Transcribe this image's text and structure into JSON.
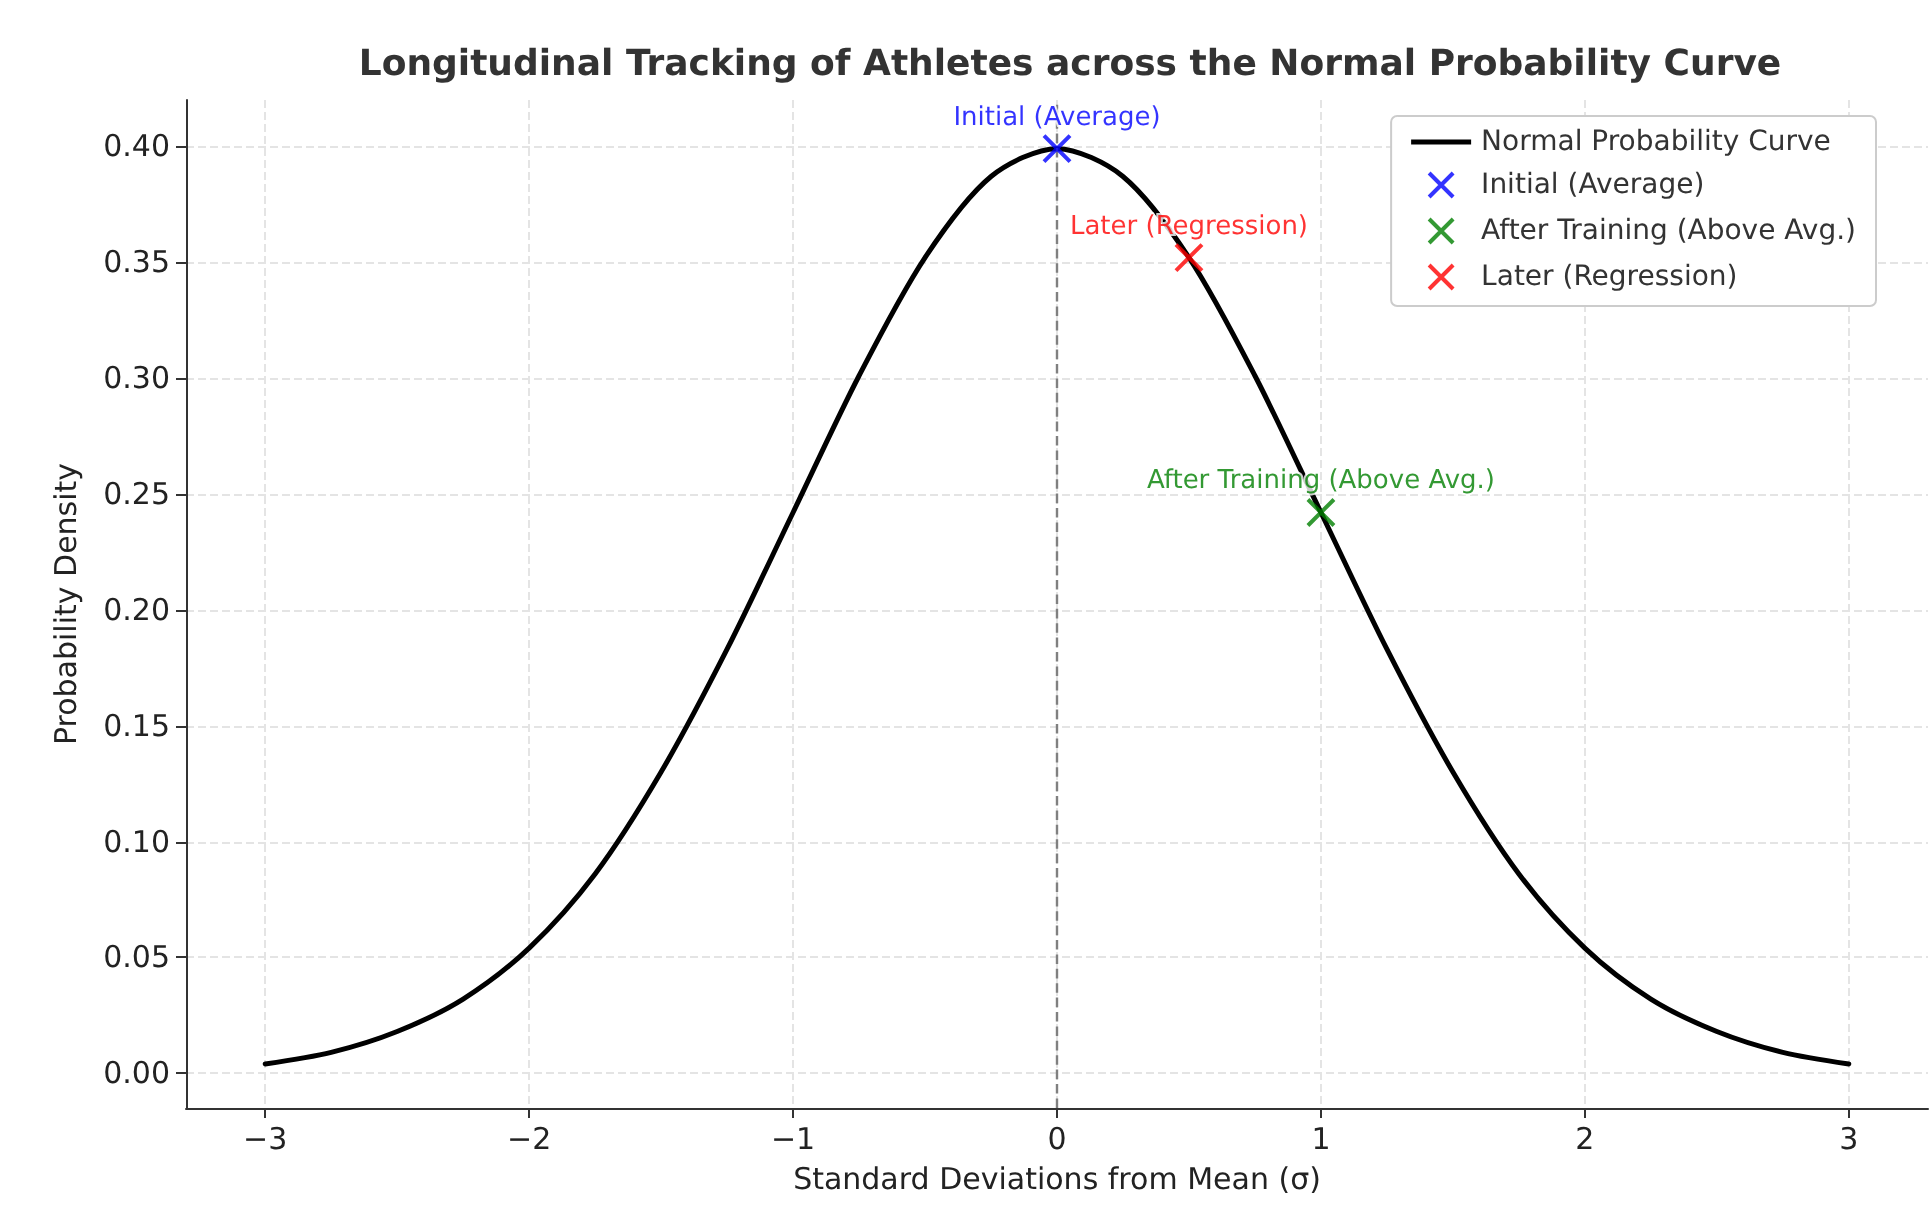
{
  "chart_data": {
    "type": "line",
    "title": "Longitudinal Tracking of Athletes across the Normal Probability Curve",
    "xlabel": "Standard Deviations from Mean (σ)",
    "ylabel": "Probability Density",
    "x": [
      -3,
      -2.75,
      -2.5,
      -2.25,
      -2,
      -1.75,
      -1.5,
      -1.25,
      -1,
      -0.75,
      -0.5,
      -0.25,
      0,
      0.25,
      0.5,
      0.75,
      1,
      1.25,
      1.5,
      1.75,
      2,
      2.25,
      2.5,
      2.75,
      3
    ],
    "series": [
      {
        "name": "Normal Probability Curve",
        "color": "#000000",
        "marker": "none",
        "line_style": "solid",
        "values": [
          0.004,
          0.009,
          0.018,
          0.032,
          0.054,
          0.086,
          0.13,
          0.183,
          0.242,
          0.301,
          0.352,
          0.387,
          0.399,
          0.387,
          0.352,
          0.301,
          0.242,
          0.183,
          0.13,
          0.086,
          0.054,
          0.032,
          0.018,
          0.009,
          0.004
        ]
      },
      {
        "name": "Initial (Average)",
        "type": "scatter",
        "color": "#0000ff",
        "marker": "cross",
        "x": [
          0
        ],
        "values": [
          0.399
        ]
      },
      {
        "name": "After Training (Above Avg.)",
        "type": "scatter",
        "color": "#008000",
        "marker": "cross",
        "x": [
          1
        ],
        "values": [
          0.242
        ]
      },
      {
        "name": "Later (Regression)",
        "type": "scatter",
        "color": "#ff0000",
        "marker": "cross",
        "x": [
          0.5
        ],
        "values": [
          0.352
        ]
      }
    ],
    "annotations": [
      {
        "text": "Initial (Average)",
        "x": 0,
        "y": 0.399
      },
      {
        "text": "After Training (Above Avg.)",
        "x": 1,
        "y": 0.242
      },
      {
        "text": "Later (Regression)",
        "x": 0.5,
        "y": 0.352
      }
    ],
    "ref_lines": [
      {
        "axis": "x",
        "value": 0,
        "label": null,
        "color": "#808080",
        "line_style": "dashed"
      }
    ],
    "xlim": [
      -3.3,
      3.3
    ],
    "ylim": [
      -0.015,
      0.42
    ],
    "xticks": [
      {
        "value": -3,
        "label": "−3"
      },
      {
        "value": -2,
        "label": "−2"
      },
      {
        "value": -1,
        "label": "−1"
      },
      0,
      1,
      2,
      3
    ],
    "yticks": [
      {
        "value": 0,
        "label": "0.00"
      },
      {
        "value": 0.05,
        "label": "0.05"
      },
      {
        "value": 0.1,
        "label": "0.10"
      },
      {
        "value": 0.15,
        "label": "0.15"
      },
      {
        "value": 0.2,
        "label": "0.20"
      },
      {
        "value": 0.25,
        "label": "0.25"
      },
      {
        "value": 0.3,
        "label": "0.30"
      },
      {
        "value": 0.35,
        "label": "0.35"
      },
      {
        "value": 0.4,
        "label": "0.40"
      }
    ],
    "grid": true,
    "legend": "top right"
  }
}
